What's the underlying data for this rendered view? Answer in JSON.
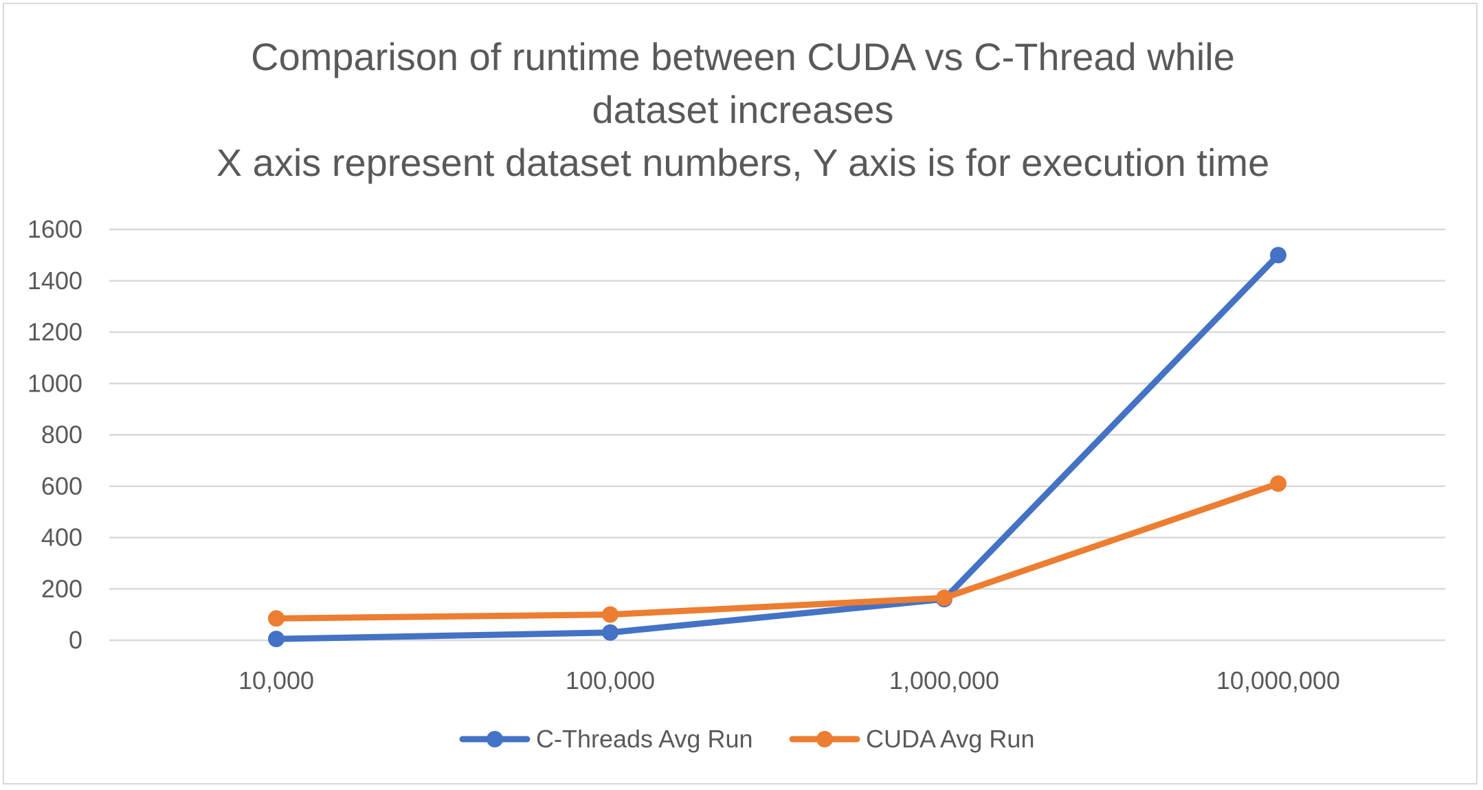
{
  "chart_data": {
    "type": "line",
    "title_lines": [
      "Comparison of runtime between CUDA vs C-Thread while",
      "dataset increases",
      "X axis represent dataset numbers, Y axis is for execution time"
    ],
    "xlabel": "",
    "ylabel": "",
    "categories": [
      "10,000",
      "100,000",
      "1,000,000",
      "10,000,000"
    ],
    "ylim": [
      0,
      1600
    ],
    "yticks": [
      "0",
      "200",
      "400",
      "600",
      "800",
      "1000",
      "1200",
      "1400",
      "1600"
    ],
    "grid": true,
    "legend_position": "bottom",
    "series": [
      {
        "name": "C-Threads Avg Run",
        "color": "#4472c4",
        "values": [
          5,
          30,
          160,
          1500
        ]
      },
      {
        "name": "CUDA Avg Run",
        "color": "#ed7d31",
        "values": [
          85,
          100,
          165,
          610
        ]
      }
    ]
  }
}
